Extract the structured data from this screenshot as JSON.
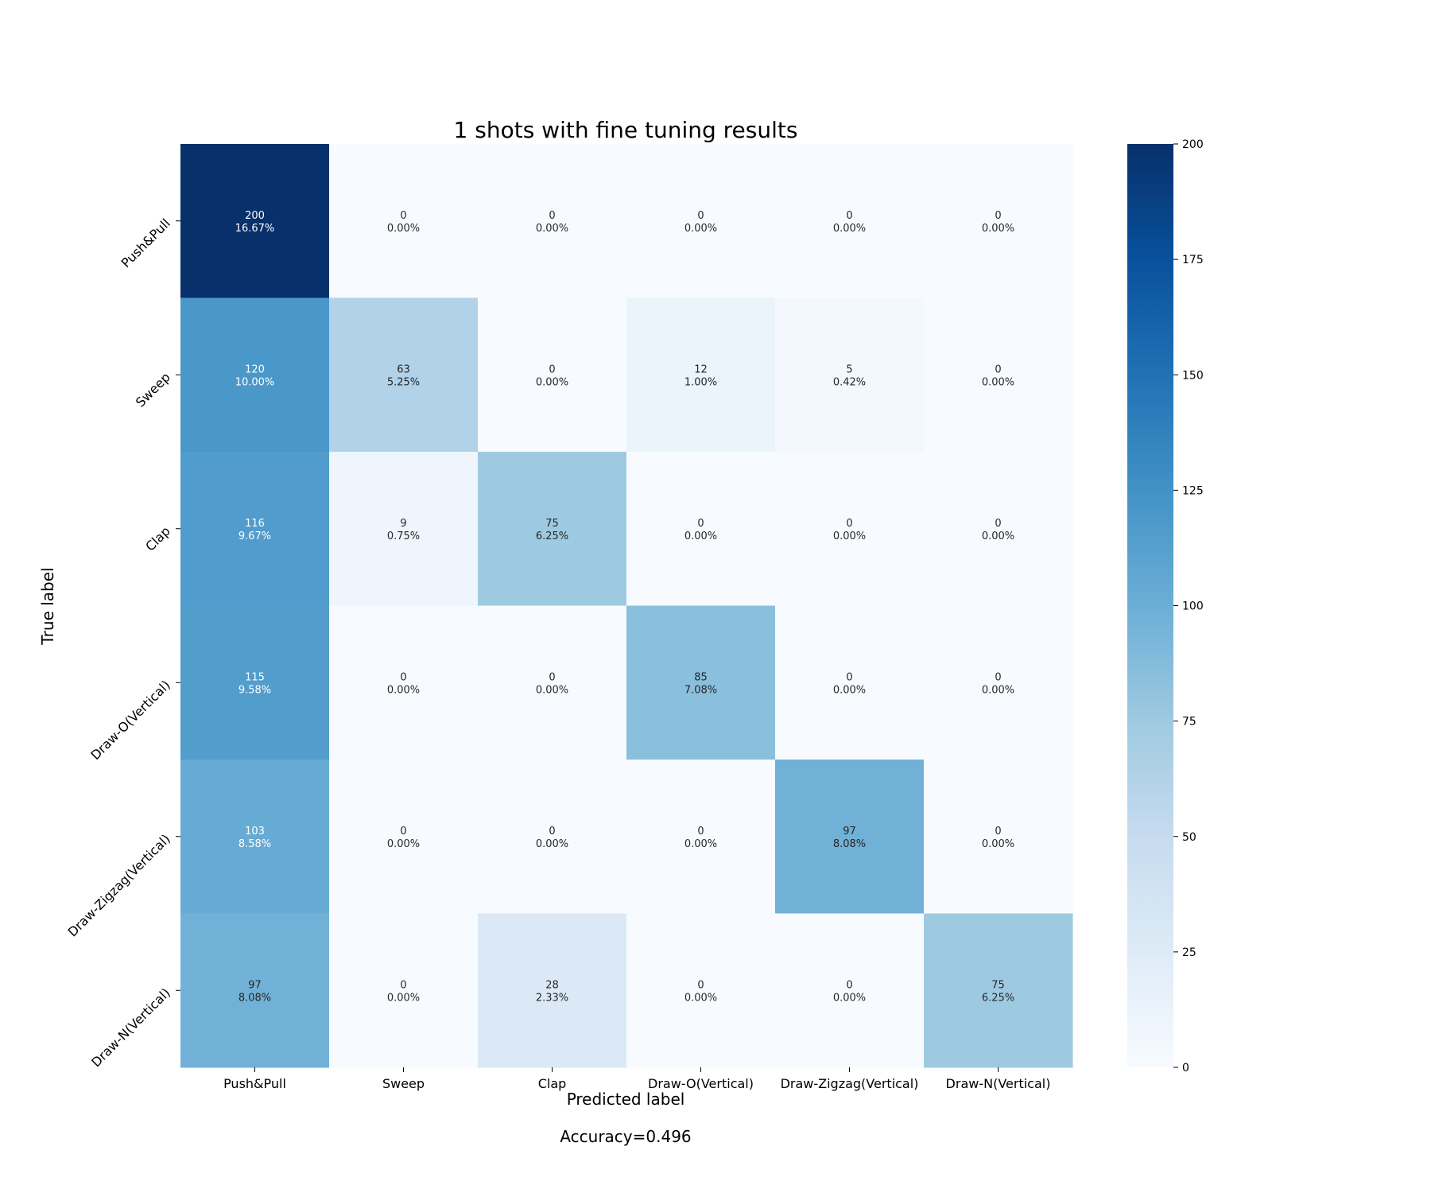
{
  "chart_data": {
    "type": "heatmap",
    "title": "1 shots with fine tuning results",
    "xlabel": "Predicted label",
    "ylabel": "True label",
    "footer": "Accuracy=0.496",
    "categories": [
      "Push&Pull",
      "Sweep",
      "Clap",
      "Draw-O(Vertical)",
      "Draw-Zigzag(Vertical)",
      "Draw-N(Vertical)"
    ],
    "matrix": [
      [
        200,
        0,
        0,
        0,
        0,
        0
      ],
      [
        120,
        63,
        0,
        12,
        5,
        0
      ],
      [
        116,
        9,
        75,
        0,
        0,
        0
      ],
      [
        115,
        0,
        0,
        85,
        0,
        0
      ],
      [
        103,
        0,
        0,
        0,
        97,
        0
      ],
      [
        97,
        0,
        28,
        0,
        0,
        75
      ]
    ],
    "percents": [
      [
        "16.67%",
        "0.00%",
        "0.00%",
        "0.00%",
        "0.00%",
        "0.00%"
      ],
      [
        "10.00%",
        "5.25%",
        "0.00%",
        "1.00%",
        "0.42%",
        "0.00%"
      ],
      [
        "9.67%",
        "0.75%",
        "6.25%",
        "0.00%",
        "0.00%",
        "0.00%"
      ],
      [
        "9.58%",
        "0.00%",
        "0.00%",
        "7.08%",
        "0.00%",
        "0.00%"
      ],
      [
        "8.58%",
        "0.00%",
        "0.00%",
        "0.00%",
        "8.08%",
        "0.00%"
      ],
      [
        "8.08%",
        "0.00%",
        "2.33%",
        "0.00%",
        "0.00%",
        "6.25%"
      ]
    ],
    "colorbar": {
      "min": 0,
      "max": 200,
      "ticks": [
        0,
        25,
        50,
        75,
        100,
        125,
        150,
        175,
        200
      ],
      "colormap": "Blues"
    },
    "grid": false,
    "legend": "colorbar-right"
  }
}
